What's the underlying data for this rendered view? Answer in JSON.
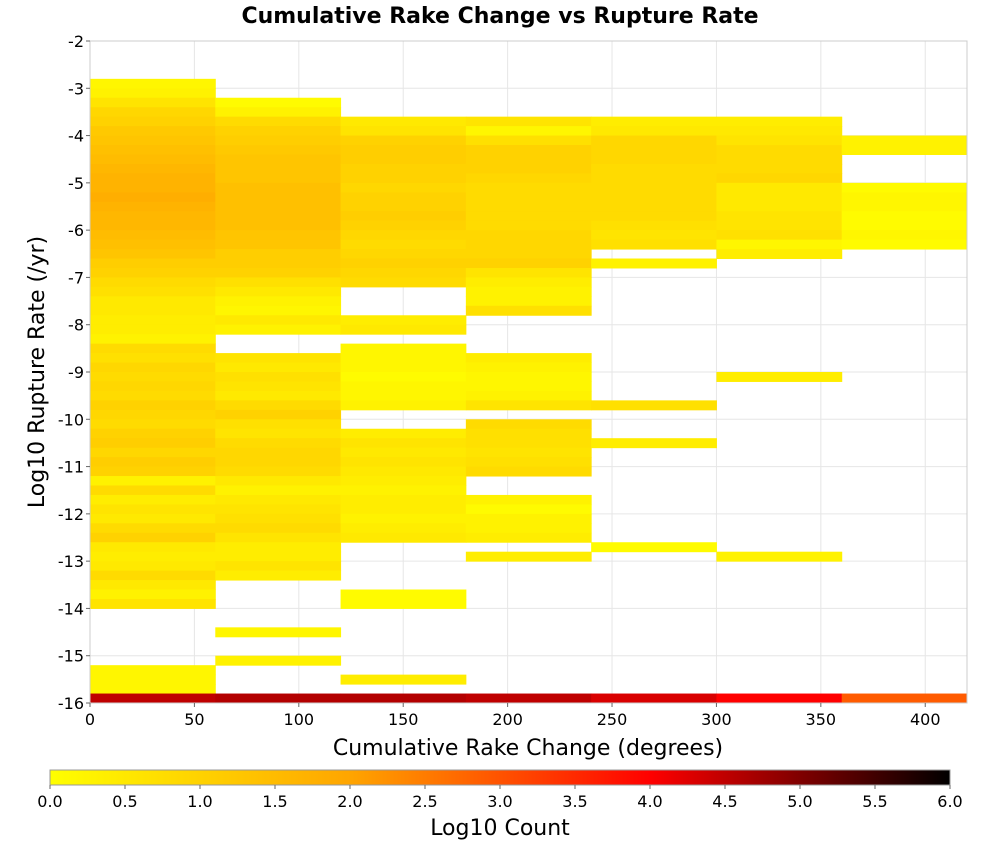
{
  "chart_data": {
    "type": "heatmap",
    "title": "Cumulative Rake Change vs Rupture Rate",
    "xlabel": "Cumulative Rake Change (degrees)",
    "ylabel": "Log10 Rupture Rate (/yr)",
    "colorbar_label": "Log10 Count",
    "xlim": [
      0,
      420
    ],
    "ylim": [
      -16,
      -2
    ],
    "xticks": [
      "0",
      "50",
      "100",
      "150",
      "200",
      "250",
      "300",
      "350",
      "400"
    ],
    "yticks": [
      "-2",
      "-3",
      "-4",
      "-5",
      "-6",
      "-7",
      "-8",
      "-9",
      "-10",
      "-11",
      "-12",
      "-13",
      "-14",
      "-15",
      "-16"
    ],
    "colorbar_ticks": [
      "0.0",
      "0.5",
      "1.0",
      "1.5",
      "2.0",
      "2.5",
      "3.0",
      "3.5",
      "4.0",
      "4.5",
      "5.0",
      "5.5",
      "6.0"
    ],
    "colorbar_range": [
      0,
      6
    ],
    "colormap": [
      "#ffff00",
      "#ffa500",
      "#ff0000",
      "#000000"
    ],
    "x_bin_width": 60,
    "y_bin_height": 0.2,
    "cells": [
      [
        0,
        -3.0,
        0.2
      ],
      [
        0,
        -3.2,
        0.3
      ],
      [
        0,
        -3.4,
        0.6
      ],
      [
        0,
        -3.6,
        0.9
      ],
      [
        0,
        -3.8,
        1.0
      ],
      [
        0,
        -4.0,
        1.2
      ],
      [
        0,
        -4.2,
        1.3
      ],
      [
        0,
        -4.4,
        1.4
      ],
      [
        0,
        -4.6,
        1.5
      ],
      [
        0,
        -4.8,
        1.6
      ],
      [
        0,
        -5.0,
        1.7
      ],
      [
        0,
        -5.2,
        1.7
      ],
      [
        0,
        -5.4,
        1.8
      ],
      [
        0,
        -5.6,
        1.7
      ],
      [
        0,
        -5.8,
        1.6
      ],
      [
        0,
        -6.0,
        1.6
      ],
      [
        0,
        -6.2,
        1.5
      ],
      [
        0,
        -6.4,
        1.4
      ],
      [
        0,
        -6.6,
        1.3
      ],
      [
        0,
        -6.8,
        1.1
      ],
      [
        0,
        -7.0,
        1.0
      ],
      [
        0,
        -7.2,
        0.8
      ],
      [
        0,
        -7.4,
        0.7
      ],
      [
        0,
        -7.6,
        0.5
      ],
      [
        0,
        -7.8,
        0.5
      ],
      [
        0,
        -8.0,
        0.4
      ],
      [
        0,
        -8.2,
        0.4
      ],
      [
        0,
        -8.4,
        0.3
      ],
      [
        0,
        -8.6,
        0.8
      ],
      [
        0,
        -8.8,
        0.7
      ],
      [
        0,
        -9.0,
        0.9
      ],
      [
        0,
        -9.2,
        0.8
      ],
      [
        0,
        -9.4,
        0.9
      ],
      [
        0,
        -9.6,
        0.8
      ],
      [
        0,
        -9.8,
        1.0
      ],
      [
        0,
        -10.0,
        0.9
      ],
      [
        0,
        -10.2,
        0.8
      ],
      [
        0,
        -10.4,
        1.0
      ],
      [
        0,
        -10.6,
        1.1
      ],
      [
        0,
        -10.8,
        0.9
      ],
      [
        0,
        -11.0,
        1.1
      ],
      [
        0,
        -11.2,
        1.0
      ],
      [
        0,
        -11.4,
        0.3
      ],
      [
        0,
        -11.6,
        0.8
      ],
      [
        0,
        -11.8,
        0.4
      ],
      [
        0,
        -12.0,
        0.6
      ],
      [
        0,
        -12.2,
        0.5
      ],
      [
        0,
        -12.4,
        0.8
      ],
      [
        0,
        -12.6,
        1.0
      ],
      [
        0,
        -12.8,
        0.5
      ],
      [
        0,
        -13.0,
        0.4
      ],
      [
        0,
        -13.2,
        0.5
      ],
      [
        0,
        -13.4,
        0.8
      ],
      [
        0,
        -13.6,
        0.5
      ],
      [
        0,
        -13.8,
        0.3
      ],
      [
        0,
        -14.0,
        0.6
      ],
      [
        0,
        -15.4,
        0.2
      ],
      [
        0,
        -15.6,
        0.2
      ],
      [
        0,
        -15.8,
        0.2
      ],
      [
        60,
        -3.4,
        0.1
      ],
      [
        60,
        -3.6,
        0.3
      ],
      [
        60,
        -3.8,
        0.8
      ],
      [
        60,
        -4.0,
        1.0
      ],
      [
        60,
        -4.2,
        1.1
      ],
      [
        60,
        -4.4,
        1.2
      ],
      [
        60,
        -4.6,
        1.3
      ],
      [
        60,
        -4.8,
        1.3
      ],
      [
        60,
        -5.0,
        1.3
      ],
      [
        60,
        -5.2,
        1.4
      ],
      [
        60,
        -5.4,
        1.4
      ],
      [
        60,
        -5.6,
        1.4
      ],
      [
        60,
        -5.8,
        1.4
      ],
      [
        60,
        -6.0,
        1.4
      ],
      [
        60,
        -6.2,
        1.3
      ],
      [
        60,
        -6.4,
        1.3
      ],
      [
        60,
        -6.6,
        1.1
      ],
      [
        60,
        -6.8,
        1.1
      ],
      [
        60,
        -7.0,
        1.0
      ],
      [
        60,
        -7.2,
        0.7
      ],
      [
        60,
        -7.4,
        0.5
      ],
      [
        60,
        -7.6,
        0.3
      ],
      [
        60,
        -7.8,
        0.2
      ],
      [
        60,
        -8.0,
        0.5
      ],
      [
        60,
        -8.2,
        0.3
      ],
      [
        60,
        -8.8,
        0.6
      ],
      [
        60,
        -9.0,
        0.5
      ],
      [
        60,
        -9.2,
        0.7
      ],
      [
        60,
        -9.4,
        0.6
      ],
      [
        60,
        -9.6,
        0.5
      ],
      [
        60,
        -9.8,
        0.8
      ],
      [
        60,
        -10.0,
        1.0
      ],
      [
        60,
        -10.2,
        0.7
      ],
      [
        60,
        -10.4,
        0.6
      ],
      [
        60,
        -10.6,
        0.8
      ],
      [
        60,
        -10.8,
        0.9
      ],
      [
        60,
        -11.0,
        0.9
      ],
      [
        60,
        -11.2,
        0.8
      ],
      [
        60,
        -11.4,
        0.5
      ],
      [
        60,
        -11.6,
        0.3
      ],
      [
        60,
        -11.8,
        0.5
      ],
      [
        60,
        -12.0,
        0.6
      ],
      [
        60,
        -12.2,
        0.7
      ],
      [
        60,
        -12.4,
        0.8
      ],
      [
        60,
        -12.6,
        0.6
      ],
      [
        60,
        -12.8,
        0.4
      ],
      [
        60,
        -13.0,
        0.4
      ],
      [
        60,
        -13.2,
        0.6
      ],
      [
        60,
        -13.4,
        0.4
      ],
      [
        60,
        -14.6,
        0.2
      ],
      [
        60,
        -15.2,
        0.3
      ],
      [
        120,
        -3.8,
        0.5
      ],
      [
        120,
        -4.0,
        0.6
      ],
      [
        120,
        -4.2,
        1.0
      ],
      [
        120,
        -4.4,
        1.1
      ],
      [
        120,
        -4.6,
        1.1
      ],
      [
        120,
        -4.8,
        1.0
      ],
      [
        120,
        -5.0,
        1.0
      ],
      [
        120,
        -5.2,
        0.9
      ],
      [
        120,
        -5.4,
        1.0
      ],
      [
        120,
        -5.6,
        1.0
      ],
      [
        120,
        -5.8,
        1.1
      ],
      [
        120,
        -6.0,
        1.0
      ],
      [
        120,
        -6.2,
        0.9
      ],
      [
        120,
        -6.4,
        0.8
      ],
      [
        120,
        -6.6,
        0.9
      ],
      [
        120,
        -6.8,
        1.0
      ],
      [
        120,
        -7.0,
        0.9
      ],
      [
        120,
        -7.2,
        0.8
      ],
      [
        120,
        -8.0,
        0.4
      ],
      [
        120,
        -8.2,
        0.5
      ],
      [
        120,
        -8.6,
        0.2
      ],
      [
        120,
        -8.8,
        0.2
      ],
      [
        120,
        -9.0,
        0.2
      ],
      [
        120,
        -9.2,
        0.1
      ],
      [
        120,
        -9.4,
        0.2
      ],
      [
        120,
        -9.6,
        0.2
      ],
      [
        120,
        -9.8,
        0.3
      ],
      [
        120,
        -10.4,
        0.4
      ],
      [
        120,
        -10.6,
        0.6
      ],
      [
        120,
        -10.8,
        0.5
      ],
      [
        120,
        -11.0,
        0.6
      ],
      [
        120,
        -11.2,
        0.5
      ],
      [
        120,
        -11.4,
        0.4
      ],
      [
        120,
        -11.6,
        0.3
      ],
      [
        120,
        -11.8,
        0.4
      ],
      [
        120,
        -12.0,
        0.4
      ],
      [
        120,
        -12.2,
        0.3
      ],
      [
        120,
        -12.4,
        0.4
      ],
      [
        120,
        -12.6,
        0.5
      ],
      [
        120,
        -13.8,
        0.1
      ],
      [
        120,
        -14.0,
        0.1
      ],
      [
        120,
        -15.6,
        0.4
      ],
      [
        180,
        -3.8,
        0.6
      ],
      [
        180,
        -4.0,
        0.2
      ],
      [
        180,
        -4.2,
        0.7
      ],
      [
        180,
        -4.4,
        1.0
      ],
      [
        180,
        -4.6,
        1.0
      ],
      [
        180,
        -4.8,
        1.0
      ],
      [
        180,
        -5.0,
        0.9
      ],
      [
        180,
        -5.2,
        0.8
      ],
      [
        180,
        -5.4,
        0.8
      ],
      [
        180,
        -5.6,
        0.8
      ],
      [
        180,
        -5.8,
        0.8
      ],
      [
        180,
        -6.0,
        0.8
      ],
      [
        180,
        -6.2,
        0.9
      ],
      [
        180,
        -6.4,
        0.9
      ],
      [
        180,
        -6.6,
        0.9
      ],
      [
        180,
        -6.8,
        1.0
      ],
      [
        180,
        -7.0,
        0.6
      ],
      [
        180,
        -7.2,
        0.4
      ],
      [
        180,
        -7.4,
        0.3
      ],
      [
        180,
        -7.6,
        0.3
      ],
      [
        180,
        -7.8,
        0.7
      ],
      [
        180,
        -8.8,
        0.4
      ],
      [
        180,
        -9.0,
        0.3
      ],
      [
        180,
        -9.2,
        0.2
      ],
      [
        180,
        -9.4,
        0.2
      ],
      [
        180,
        -9.6,
        0.3
      ],
      [
        180,
        -9.8,
        0.6
      ],
      [
        180,
        -10.2,
        0.8
      ],
      [
        180,
        -10.4,
        0.7
      ],
      [
        180,
        -10.6,
        0.7
      ],
      [
        180,
        -10.8,
        0.6
      ],
      [
        180,
        -11.0,
        0.7
      ],
      [
        180,
        -11.2,
        0.8
      ],
      [
        180,
        -11.8,
        0.3
      ],
      [
        180,
        -12.0,
        0.1
      ],
      [
        180,
        -12.2,
        0.3
      ],
      [
        180,
        -12.4,
        0.3
      ],
      [
        180,
        -12.6,
        0.4
      ],
      [
        180,
        -13.0,
        0.4
      ],
      [
        240,
        -3.8,
        0.4
      ],
      [
        240,
        -4.0,
        0.5
      ],
      [
        240,
        -4.2,
        0.9
      ],
      [
        240,
        -4.4,
        0.9
      ],
      [
        240,
        -4.6,
        0.9
      ],
      [
        240,
        -4.8,
        0.8
      ],
      [
        240,
        -5.0,
        0.8
      ],
      [
        240,
        -5.2,
        0.8
      ],
      [
        240,
        -5.4,
        0.8
      ],
      [
        240,
        -5.6,
        0.8
      ],
      [
        240,
        -5.8,
        0.8
      ],
      [
        240,
        -6.0,
        0.7
      ],
      [
        240,
        -6.2,
        0.6
      ],
      [
        240,
        -6.4,
        0.7
      ],
      [
        240,
        -6.8,
        0.3
      ],
      [
        240,
        -9.8,
        0.7
      ],
      [
        240,
        -10.6,
        0.4
      ],
      [
        240,
        -12.8,
        0.1
      ],
      [
        300,
        -3.8,
        0.4
      ],
      [
        300,
        -4.0,
        0.5
      ],
      [
        300,
        -4.2,
        0.6
      ],
      [
        300,
        -4.4,
        0.8
      ],
      [
        300,
        -4.6,
        0.8
      ],
      [
        300,
        -4.8,
        0.8
      ],
      [
        300,
        -5.0,
        0.9
      ],
      [
        300,
        -5.2,
        0.5
      ],
      [
        300,
        -5.4,
        0.5
      ],
      [
        300,
        -5.6,
        0.5
      ],
      [
        300,
        -5.8,
        0.6
      ],
      [
        300,
        -6.0,
        0.6
      ],
      [
        300,
        -6.2,
        0.7
      ],
      [
        300,
        -6.4,
        0.2
      ],
      [
        300,
        -6.6,
        0.4
      ],
      [
        300,
        -9.2,
        0.4
      ],
      [
        300,
        -13.0,
        0.3
      ],
      [
        360,
        -4.2,
        0.3
      ],
      [
        360,
        -4.4,
        0.3
      ],
      [
        360,
        -5.2,
        0.1
      ],
      [
        360,
        -5.4,
        0.2
      ],
      [
        360,
        -5.6,
        0.2
      ],
      [
        360,
        -5.8,
        0.1
      ],
      [
        360,
        -6.0,
        0.1
      ],
      [
        360,
        -6.2,
        0.2
      ],
      [
        360,
        -6.4,
        0.1
      ],
      [
        0,
        -16.0,
        4.5
      ],
      [
        60,
        -16.0,
        4.6
      ],
      [
        120,
        -16.0,
        4.6
      ],
      [
        180,
        -16.0,
        4.5
      ],
      [
        240,
        -16.0,
        4.3
      ],
      [
        300,
        -16.0,
        4.0
      ],
      [
        360,
        -16.0,
        2.9
      ]
    ]
  }
}
